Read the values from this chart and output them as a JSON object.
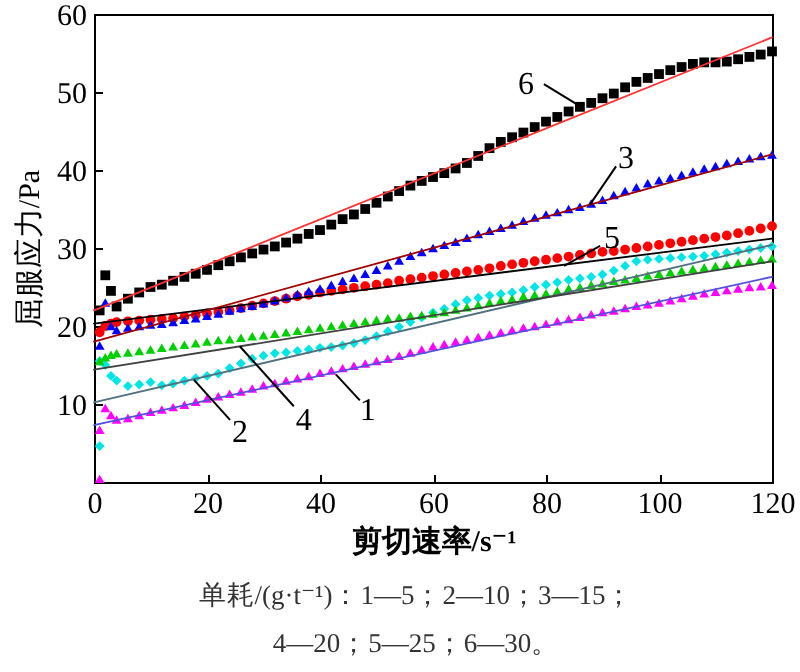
{
  "chart_data": {
    "type": "scatter",
    "xlabel": "剪切速率/s⁻¹",
    "ylabel": "屈服应力/Pa",
    "xlim": [
      0,
      120
    ],
    "ylim": [
      0,
      60
    ],
    "xticks": [
      0,
      20,
      40,
      60,
      80,
      100,
      120
    ],
    "yticks": [
      10,
      20,
      30,
      40,
      50,
      60
    ],
    "x": [
      1,
      2,
      3,
      4,
      6,
      8,
      10,
      12,
      14,
      16,
      18,
      20,
      22,
      24,
      26,
      28,
      30,
      32,
      34,
      36,
      38,
      40,
      42,
      44,
      46,
      48,
      50,
      52,
      54,
      56,
      58,
      60,
      62,
      64,
      66,
      68,
      70,
      72,
      74,
      76,
      78,
      80,
      82,
      84,
      86,
      88,
      90,
      92,
      94,
      96,
      98,
      100,
      102,
      104,
      106,
      108,
      110,
      112,
      114,
      116,
      118,
      120
    ],
    "series": [
      {
        "color": "#ff00ff",
        "marker": "triangle",
        "x": [
          1,
          1,
          2,
          3,
          4,
          6,
          8,
          10,
          12,
          14,
          16,
          18,
          20,
          22,
          24,
          26,
          28,
          30,
          32,
          34,
          36,
          38,
          40,
          42,
          44,
          46,
          48,
          50,
          52,
          54,
          56,
          58,
          60,
          62,
          64,
          66,
          68,
          70,
          72,
          74,
          76,
          78,
          80,
          82,
          84,
          86,
          88,
          90,
          92,
          94,
          96,
          98,
          100,
          102,
          104,
          106,
          108,
          110,
          112,
          114,
          116,
          118,
          120
        ],
        "values": [
          0.4,
          6.7,
          9.5,
          8.6,
          8,
          8.2,
          8.6,
          9,
          9.3,
          9.6,
          9.9,
          10.3,
          10.7,
          11,
          11.3,
          11.6,
          12,
          12.4,
          12.7,
          13,
          13.3,
          13.6,
          14,
          14.3,
          14.6,
          14.9,
          15.2,
          15.5,
          15.8,
          16.2,
          16.6,
          17,
          17.4,
          17.7,
          18,
          18.3,
          18.6,
          18.9,
          19.2,
          19.5,
          19.8,
          20,
          20.3,
          20.6,
          20.9,
          21.2,
          21.5,
          21.8,
          22,
          22.3,
          22.6,
          22.8,
          23,
          23.3,
          23.6,
          23.9,
          24.2,
          24.4,
          24.6,
          24.8,
          25,
          25.1,
          25.3
        ]
      },
      {
        "color": "#00e5e5",
        "marker": "diamond",
        "x": [
          1,
          1,
          2,
          3,
          4,
          6,
          8,
          10,
          12,
          14,
          16,
          18,
          20,
          22,
          24,
          26,
          28,
          30,
          32,
          34,
          36,
          38,
          40,
          42,
          44,
          46,
          48,
          50,
          52,
          54,
          56,
          58,
          60,
          62,
          64,
          66,
          68,
          70,
          72,
          74,
          76,
          78,
          80,
          82,
          84,
          86,
          88,
          90,
          92,
          94,
          96,
          98,
          100,
          102,
          104,
          106,
          108,
          110,
          112,
          114,
          116,
          118,
          120
        ],
        "values": [
          4.6,
          15.5,
          15,
          13.6,
          13,
          12.3,
          12.5,
          12.8,
          12.4,
          12.6,
          13,
          13.3,
          13.6,
          13.9,
          14.6,
          15.2,
          15.8,
          16.2,
          16.5,
          16.6,
          16.8,
          17,
          17.2,
          17.3,
          17.5,
          17.8,
          18.2,
          18.7,
          19.3,
          19.9,
          20.5,
          21.1,
          21.7,
          22.2,
          22.8,
          23.3,
          23.6,
          23.9,
          24.1,
          24.3,
          24.6,
          25,
          25.3,
          25.6,
          25.9,
          26.1,
          26.3,
          26.6,
          27.1,
          27.7,
          28.3,
          28.5,
          28.6,
          28.7,
          28.8,
          28.9,
          29,
          29.2,
          29.4,
          29.6,
          29.8,
          30,
          30.2
        ]
      },
      {
        "color": "#00d000",
        "marker": "triangle",
        "values": [
          15.5,
          16,
          16.3,
          16.5,
          16.6,
          16.8,
          17,
          17.2,
          17.4,
          17.6,
          17.8,
          18,
          18.2,
          18.3,
          18.5,
          18.7,
          18.8,
          19,
          19.2,
          19.4,
          19.6,
          19.8,
          20,
          20.2,
          20.4,
          20.6,
          20.8,
          21,
          21.1,
          21.3,
          21.4,
          21.6,
          21.8,
          22.1,
          22.4,
          22.7,
          23,
          23.3,
          23.5,
          23.8,
          24,
          24.2,
          24.5,
          24.8,
          25,
          25.3,
          25.5,
          25.8,
          26,
          26.2,
          26.5,
          26.7,
          26.9,
          27.1,
          27.3,
          27.5,
          27.7,
          27.9,
          28.1,
          28.3,
          28.5,
          28.7
        ]
      },
      {
        "color": "#ff0000",
        "marker": "circle",
        "values": [
          19.2,
          20,
          20.3,
          20.5,
          20.6,
          20.7,
          20.8,
          20.9,
          21,
          21.2,
          21.4,
          21.6,
          21.8,
          22,
          22.3,
          22.6,
          22.9,
          23.2,
          23.5,
          23.8,
          24,
          24.3,
          24.5,
          24.7,
          24.9,
          25.1,
          25.3,
          25.5,
          25.8,
          26,
          26.2,
          26.4,
          26.6,
          26.8,
          27,
          27.2,
          27.4,
          27.7,
          27.9,
          28.1,
          28.3,
          28.5,
          28.7,
          28.9,
          29.1,
          29.3,
          29.5,
          29.6,
          29.8,
          30,
          30.2,
          30.4,
          30.6,
          30.8,
          31,
          31.2,
          31.4,
          31.6,
          31.9,
          32.2,
          32.5,
          32.8
        ]
      },
      {
        "color": "#0000ff",
        "marker": "triangle",
        "values": [
          17.5,
          23,
          20,
          19.5,
          19.8,
          20,
          20.2,
          20.3,
          20.5,
          20.8,
          21,
          21.3,
          21.6,
          22,
          22.3,
          22.6,
          22.9,
          23.3,
          23.7,
          24.1,
          24.5,
          24.8,
          25.3,
          25.8,
          26.2,
          26.7,
          27.2,
          27.8,
          28.4,
          29,
          29.5,
          30,
          30.4,
          30.8,
          31.3,
          31.8,
          32.2,
          32.6,
          33,
          33.5,
          33.9,
          34.3,
          34.6,
          35,
          35.3,
          35.7,
          36.2,
          36.8,
          37.3,
          37.8,
          38.3,
          38.7,
          39,
          39.4,
          39.8,
          40.2,
          40.5,
          40.9,
          41.2,
          41.5,
          41.8,
          42
        ]
      },
      {
        "color": "#000000",
        "marker": "square",
        "values": [
          22,
          26.5,
          24.5,
          22.5,
          23.5,
          24.3,
          25,
          25.3,
          25.8,
          26.3,
          26.7,
          27.2,
          27.8,
          28.3,
          28.8,
          29.3,
          29.8,
          30.2,
          30.7,
          31.2,
          31.8,
          32.3,
          33,
          33.7,
          34.3,
          35,
          35.8,
          36.6,
          37.3,
          38,
          38.6,
          39.1,
          39.6,
          40.2,
          40.9,
          41.8,
          42.8,
          43.6,
          44.2,
          44.8,
          45.5,
          46.2,
          46.8,
          47.5,
          48.1,
          48.6,
          49.2,
          49.8,
          50.6,
          51.3,
          51.8,
          52.3,
          52.8,
          53.2,
          53.6,
          53.8,
          53.8,
          53.9,
          54.2,
          54.5,
          54.8,
          55.2
        ]
      },
      {
        "type": "line",
        "color": "#5050e0",
        "x": [
          0,
          120
        ],
        "values": [
          7.3,
          26.3
        ]
      },
      {
        "type": "line",
        "color": "#507080",
        "x": [
          0,
          120
        ],
        "values": [
          10.2,
          30.4
        ]
      },
      {
        "type": "line",
        "color": "#404040",
        "x": [
          0,
          120
        ],
        "values": [
          14.4,
          28.3
        ]
      },
      {
        "type": "line",
        "color": "#000000",
        "x": [
          0,
          120
        ],
        "values": [
          20.3,
          31.2
        ]
      },
      {
        "type": "line",
        "color": "#a00000",
        "x": [
          0,
          120
        ],
        "values": [
          18,
          42
        ]
      },
      {
        "type": "line",
        "color": "#ff3030",
        "x": [
          0,
          120
        ],
        "values": [
          22,
          57
        ]
      }
    ],
    "annotations": [
      {
        "text": "1",
        "x": 42.8,
        "y": 13.8
      },
      {
        "text": "2",
        "x": 17.7,
        "y": 13.1
      },
      {
        "text": "3",
        "x": 87.8,
        "y": 35.6
      },
      {
        "text": "4",
        "x": 25.8,
        "y": 17.4
      },
      {
        "text": "5",
        "x": 83.2,
        "y": 27.7
      },
      {
        "text": "6",
        "x": 86,
        "y": 48.2
      },
      "单耗/(g·t⁻¹)：1—5；2—10；3—15；4—20；5—25；6—30。"
    ]
  }
}
